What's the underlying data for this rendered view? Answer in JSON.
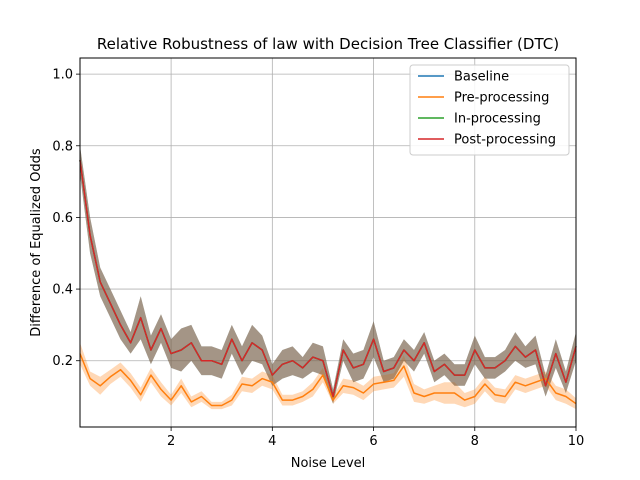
{
  "chart_data": {
    "type": "line",
    "title": "Relative Robustness of law with Decision Tree Classifier (DTC)",
    "xlabel": "Noise Level",
    "ylabel": "Difference of Equalized Odds",
    "xlim": [
      0.2,
      10
    ],
    "ylim": [
      0.015,
      1.045
    ],
    "xticks": [
      2,
      4,
      6,
      8,
      10
    ],
    "yticks": [
      0.2,
      0.4,
      0.6,
      0.8,
      1.0
    ],
    "xtick_labels": [
      "2",
      "4",
      "6",
      "8",
      "10"
    ],
    "ytick_labels": [
      "0.2",
      "0.4",
      "0.6",
      "0.8",
      "1.0"
    ],
    "grid": true,
    "legend_position": "top-right",
    "x": [
      0.2,
      0.4,
      0.6,
      0.8,
      1.0,
      1.2,
      1.4,
      1.6,
      1.8,
      2.0,
      2.2,
      2.4,
      2.6,
      2.8,
      3.0,
      3.2,
      3.4,
      3.6,
      3.8,
      4.0,
      4.2,
      4.4,
      4.6,
      4.8,
      5.0,
      5.2,
      5.4,
      5.6,
      5.8,
      6.0,
      6.2,
      6.4,
      6.6,
      6.8,
      7.0,
      7.2,
      7.4,
      7.6,
      7.8,
      8.0,
      8.2,
      8.4,
      8.6,
      8.8,
      9.0,
      9.2,
      9.4,
      9.6,
      9.8,
      10.0
    ],
    "series": [
      {
        "name": "Baseline",
        "color": "#1f77b4",
        "band_color": "#1f77b4",
        "values": [
          0.76,
          0.55,
          0.42,
          0.36,
          0.3,
          0.25,
          0.32,
          0.23,
          0.29,
          0.22,
          0.23,
          0.25,
          0.2,
          0.2,
          0.19,
          0.26,
          0.2,
          0.25,
          0.23,
          0.16,
          0.19,
          0.2,
          0.18,
          0.21,
          0.2,
          0.1,
          0.23,
          0.18,
          0.19,
          0.26,
          0.17,
          0.18,
          0.23,
          0.2,
          0.25,
          0.17,
          0.19,
          0.16,
          0.16,
          0.23,
          0.18,
          0.18,
          0.2,
          0.24,
          0.21,
          0.23,
          0.13,
          0.22,
          0.14,
          0.24
        ],
        "band": [
          0.04,
          0.05,
          0.04,
          0.04,
          0.04,
          0.03,
          0.06,
          0.04,
          0.04,
          0.04,
          0.06,
          0.05,
          0.04,
          0.04,
          0.04,
          0.04,
          0.04,
          0.05,
          0.04,
          0.03,
          0.04,
          0.04,
          0.03,
          0.04,
          0.04,
          0.02,
          0.03,
          0.04,
          0.04,
          0.05,
          0.03,
          0.03,
          0.03,
          0.03,
          0.03,
          0.03,
          0.03,
          0.03,
          0.03,
          0.04,
          0.03,
          0.03,
          0.03,
          0.04,
          0.03,
          0.04,
          0.03,
          0.04,
          0.03,
          0.04
        ]
      },
      {
        "name": "Pre-processing",
        "color": "#ff7f0e",
        "band_color": "#ff7f0e",
        "values": [
          0.22,
          0.15,
          0.13,
          0.155,
          0.175,
          0.145,
          0.105,
          0.16,
          0.12,
          0.09,
          0.13,
          0.085,
          0.1,
          0.075,
          0.075,
          0.09,
          0.135,
          0.13,
          0.15,
          0.14,
          0.09,
          0.09,
          0.1,
          0.12,
          0.16,
          0.09,
          0.13,
          0.125,
          0.11,
          0.135,
          0.14,
          0.145,
          0.185,
          0.11,
          0.1,
          0.11,
          0.11,
          0.11,
          0.09,
          0.1,
          0.135,
          0.105,
          0.1,
          0.14,
          0.13,
          0.14,
          0.15,
          0.11,
          0.1,
          0.08
        ],
        "band": [
          0.03,
          0.02,
          0.025,
          0.02,
          0.02,
          0.02,
          0.02,
          0.02,
          0.02,
          0.015,
          0.02,
          0.015,
          0.015,
          0.01,
          0.01,
          0.015,
          0.02,
          0.02,
          0.02,
          0.02,
          0.015,
          0.015,
          0.015,
          0.02,
          0.02,
          0.01,
          0.02,
          0.02,
          0.02,
          0.02,
          0.02,
          0.02,
          0.03,
          0.025,
          0.02,
          0.02,
          0.03,
          0.03,
          0.02,
          0.02,
          0.02,
          0.02,
          0.02,
          0.02,
          0.02,
          0.02,
          0.02,
          0.02,
          0.02,
          0.015
        ]
      },
      {
        "name": "In-processing",
        "color": "#2ca02c",
        "band_color": "#2ca02c",
        "values": [
          0.76,
          0.55,
          0.42,
          0.36,
          0.3,
          0.25,
          0.32,
          0.23,
          0.29,
          0.22,
          0.23,
          0.25,
          0.2,
          0.2,
          0.19,
          0.26,
          0.2,
          0.25,
          0.23,
          0.16,
          0.19,
          0.2,
          0.18,
          0.21,
          0.2,
          0.1,
          0.23,
          0.18,
          0.19,
          0.26,
          0.17,
          0.18,
          0.23,
          0.2,
          0.25,
          0.17,
          0.19,
          0.16,
          0.16,
          0.23,
          0.18,
          0.18,
          0.2,
          0.24,
          0.21,
          0.23,
          0.13,
          0.22,
          0.14,
          0.24
        ],
        "band": [
          0.04,
          0.05,
          0.04,
          0.04,
          0.04,
          0.03,
          0.06,
          0.04,
          0.04,
          0.04,
          0.06,
          0.05,
          0.04,
          0.04,
          0.04,
          0.04,
          0.04,
          0.05,
          0.04,
          0.03,
          0.04,
          0.04,
          0.03,
          0.04,
          0.04,
          0.02,
          0.03,
          0.04,
          0.04,
          0.05,
          0.03,
          0.03,
          0.03,
          0.03,
          0.03,
          0.03,
          0.03,
          0.03,
          0.03,
          0.04,
          0.03,
          0.03,
          0.03,
          0.04,
          0.03,
          0.04,
          0.03,
          0.04,
          0.03,
          0.04
        ]
      },
      {
        "name": "Post-processing",
        "color": "#d62728",
        "band_color": "#d62728",
        "values": [
          0.76,
          0.55,
          0.42,
          0.36,
          0.3,
          0.25,
          0.32,
          0.23,
          0.29,
          0.22,
          0.23,
          0.25,
          0.2,
          0.2,
          0.19,
          0.26,
          0.2,
          0.25,
          0.23,
          0.16,
          0.19,
          0.2,
          0.18,
          0.21,
          0.2,
          0.1,
          0.23,
          0.18,
          0.19,
          0.26,
          0.17,
          0.18,
          0.23,
          0.2,
          0.25,
          0.17,
          0.19,
          0.16,
          0.16,
          0.23,
          0.18,
          0.18,
          0.2,
          0.24,
          0.21,
          0.23,
          0.13,
          0.22,
          0.14,
          0.24
        ],
        "band": [
          0.04,
          0.05,
          0.04,
          0.04,
          0.04,
          0.03,
          0.06,
          0.04,
          0.04,
          0.04,
          0.06,
          0.05,
          0.04,
          0.04,
          0.04,
          0.04,
          0.04,
          0.05,
          0.04,
          0.03,
          0.04,
          0.04,
          0.03,
          0.04,
          0.04,
          0.02,
          0.03,
          0.04,
          0.04,
          0.05,
          0.03,
          0.03,
          0.03,
          0.03,
          0.03,
          0.03,
          0.03,
          0.03,
          0.03,
          0.04,
          0.03,
          0.03,
          0.03,
          0.04,
          0.03,
          0.04,
          0.03,
          0.04,
          0.03,
          0.04
        ]
      }
    ]
  }
}
